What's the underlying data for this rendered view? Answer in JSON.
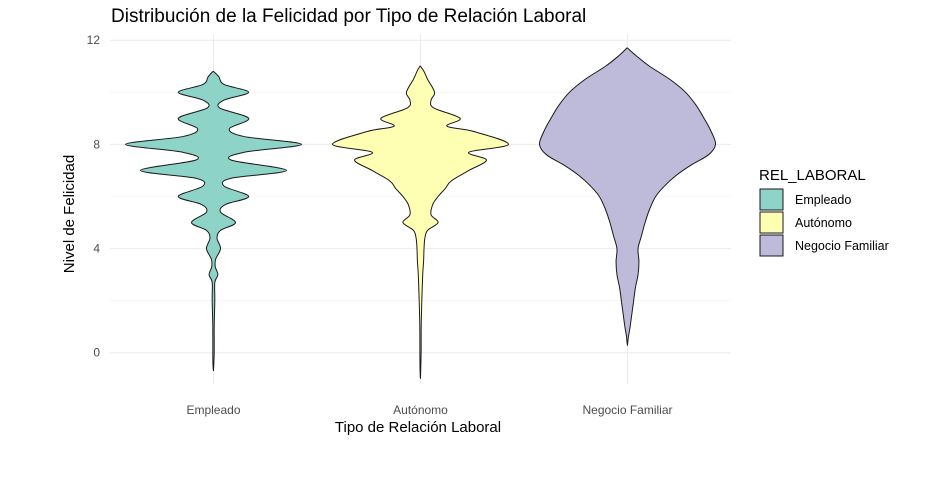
{
  "chart_data": {
    "type": "violin",
    "title": "Distribución de la Felicidad por Tipo de Relación Laboral",
    "xlabel": "Tipo de Relación Laboral",
    "ylabel": "Nivel de Felicidad",
    "ylim": [
      -1.2,
      12.2
    ],
    "yticks": [
      0,
      4,
      8,
      12
    ],
    "categories": [
      "Empleado",
      "Autónomo",
      "Negocio Familiar"
    ],
    "grid": true,
    "legend": {
      "title": "REL_LABORAL",
      "position": "right",
      "entries": [
        "Empleado",
        "Autónomo",
        "Negocio Familiar"
      ]
    },
    "series": [
      {
        "category": "Empleado",
        "color": "#8dd3c7",
        "y_min": -0.7,
        "y_max": 10.8,
        "density_profile": [
          [
            10.8,
            0.0
          ],
          [
            10.6,
            0.06
          ],
          [
            10.3,
            0.12
          ],
          [
            10.0,
            0.4
          ],
          [
            9.7,
            0.12
          ],
          [
            9.4,
            0.07
          ],
          [
            9.0,
            0.4
          ],
          [
            8.6,
            0.18
          ],
          [
            8.3,
            0.35
          ],
          [
            8.0,
            1.0
          ],
          [
            7.7,
            0.35
          ],
          [
            7.4,
            0.2
          ],
          [
            7.0,
            0.83
          ],
          [
            6.7,
            0.2
          ],
          [
            6.4,
            0.12
          ],
          [
            6.0,
            0.4
          ],
          [
            5.7,
            0.14
          ],
          [
            5.4,
            0.08
          ],
          [
            5.0,
            0.25
          ],
          [
            4.7,
            0.08
          ],
          [
            4.4,
            0.04
          ],
          [
            4.0,
            0.08
          ],
          [
            3.6,
            0.025
          ],
          [
            3.3,
            0.02
          ],
          [
            3.0,
            0.05
          ],
          [
            2.7,
            0.015
          ],
          [
            2.0,
            0.015
          ],
          [
            1.0,
            0.008
          ],
          [
            0.0,
            0.008
          ],
          [
            -0.7,
            0.0
          ]
        ]
      },
      {
        "category": "Autónomo",
        "color": "#ffffb3",
        "y_min": -1.0,
        "y_max": 11.0,
        "density_profile": [
          [
            11.0,
            0.0
          ],
          [
            10.8,
            0.04
          ],
          [
            10.5,
            0.08
          ],
          [
            10.0,
            0.16
          ],
          [
            9.7,
            0.12
          ],
          [
            9.4,
            0.15
          ],
          [
            9.0,
            0.45
          ],
          [
            8.7,
            0.3
          ],
          [
            8.5,
            0.6
          ],
          [
            8.0,
            1.0
          ],
          [
            7.7,
            0.55
          ],
          [
            7.4,
            0.75
          ],
          [
            7.0,
            0.55
          ],
          [
            6.6,
            0.35
          ],
          [
            6.3,
            0.28
          ],
          [
            6.0,
            0.2
          ],
          [
            5.7,
            0.14
          ],
          [
            5.3,
            0.12
          ],
          [
            5.0,
            0.2
          ],
          [
            4.7,
            0.08
          ],
          [
            4.4,
            0.05
          ],
          [
            4.0,
            0.04
          ],
          [
            3.5,
            0.035
          ],
          [
            3.0,
            0.025
          ],
          [
            2.0,
            0.015
          ],
          [
            1.0,
            0.008
          ],
          [
            0.0,
            0.006
          ],
          [
            -1.0,
            0.0
          ]
        ]
      },
      {
        "category": "Negocio Familiar",
        "color": "#bebada",
        "y_min": 0.3,
        "y_max": 11.7,
        "density_profile": [
          [
            11.7,
            0.0
          ],
          [
            11.4,
            0.1
          ],
          [
            11.0,
            0.25
          ],
          [
            10.5,
            0.48
          ],
          [
            10.0,
            0.66
          ],
          [
            9.5,
            0.78
          ],
          [
            9.0,
            0.87
          ],
          [
            8.5,
            0.95
          ],
          [
            8.0,
            1.0
          ],
          [
            7.6,
            0.92
          ],
          [
            7.2,
            0.72
          ],
          [
            6.8,
            0.55
          ],
          [
            6.4,
            0.42
          ],
          [
            6.0,
            0.32
          ],
          [
            5.5,
            0.25
          ],
          [
            5.0,
            0.2
          ],
          [
            4.5,
            0.16
          ],
          [
            4.0,
            0.12
          ],
          [
            3.5,
            0.13
          ],
          [
            3.0,
            0.12
          ],
          [
            2.5,
            0.09
          ],
          [
            2.0,
            0.07
          ],
          [
            1.5,
            0.05
          ],
          [
            1.0,
            0.03
          ],
          [
            0.6,
            0.01
          ],
          [
            0.3,
            0.0
          ]
        ]
      }
    ]
  }
}
